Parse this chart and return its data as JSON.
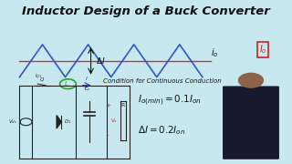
{
  "title": "Inductor Design of a Buck Converter",
  "bg_color": "#c8e8f0",
  "title_color": "#111111",
  "title_fontsize": 9.5,
  "waveform_color": "#3355cc",
  "avg_line_color": "#cc3333",
  "condition_text": "Condition for Continuous Conduction",
  "formula1": "$I_{o(min)} = 0.1I_{on}$",
  "formula2": "$\\Delta I = 0.2I_{on}$",
  "formula_fontsize": 7.5,
  "io_label": "$i_o$",
  "Io_label": "$I_o$",
  "delta_i_label": "$\\Delta I$",
  "circuit_line_color": "#222222",
  "red_box_color": "#cc2222",
  "person_body_color": "#1a1a2e",
  "person_skin_color": "#8B6347"
}
